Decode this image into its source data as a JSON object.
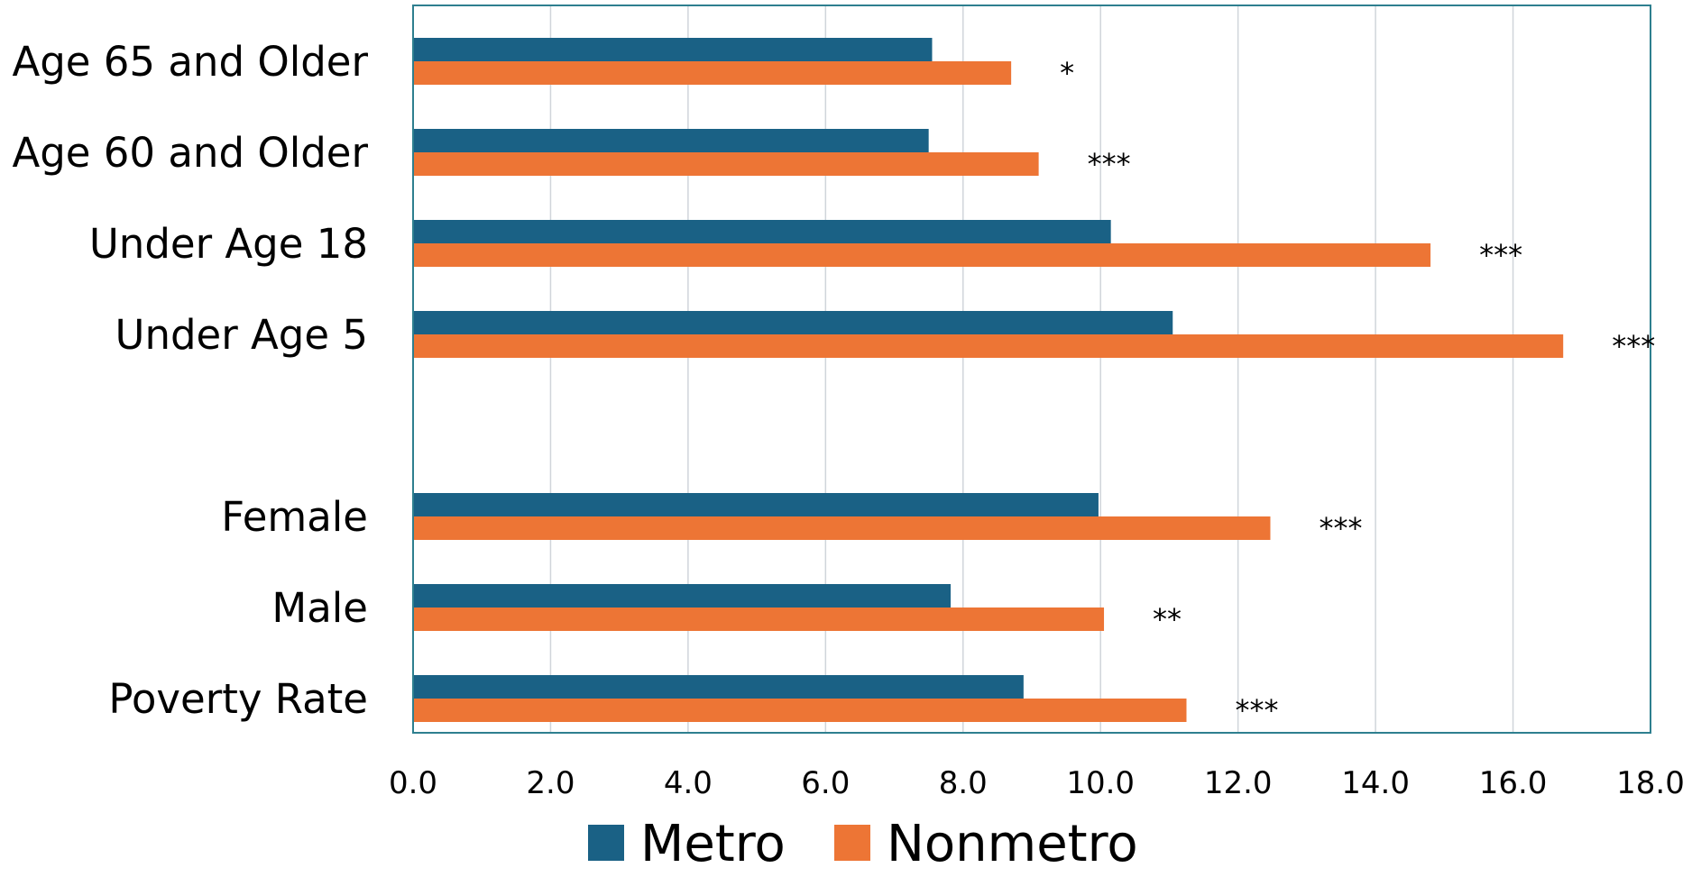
{
  "chart_data": {
    "type": "bar",
    "orientation": "horizontal",
    "title": "",
    "xlabel": "",
    "ylabel": "",
    "xlim": [
      0,
      18
    ],
    "xticks": [
      "0.0",
      "2.0",
      "4.0",
      "6.0",
      "8.0",
      "10.0",
      "12.0",
      "14.0",
      "16.0",
      "18.0"
    ],
    "grid": "vertical",
    "legend_position": "bottom",
    "categories": [
      "Age 65 and Older",
      "Age 60 and Older",
      "Under Age 18",
      "Under Age 5",
      "",
      "Female",
      "Male",
      "Poverty Rate"
    ],
    "series": [
      {
        "name": "Metro",
        "color": "#1a6185",
        "values": [
          7.55,
          7.5,
          10.15,
          11.05,
          null,
          9.97,
          7.82,
          8.88
        ]
      },
      {
        "name": "Nonmetro",
        "color": "#ed7535",
        "values": [
          8.7,
          9.1,
          14.8,
          16.73,
          null,
          12.47,
          10.05,
          11.25
        ]
      }
    ],
    "significance": [
      "*",
      "***",
      "***",
      "***",
      "",
      "***",
      "**",
      "***"
    ],
    "axis_color": "#2e7f8f",
    "grid_color": "#d0d5da"
  }
}
